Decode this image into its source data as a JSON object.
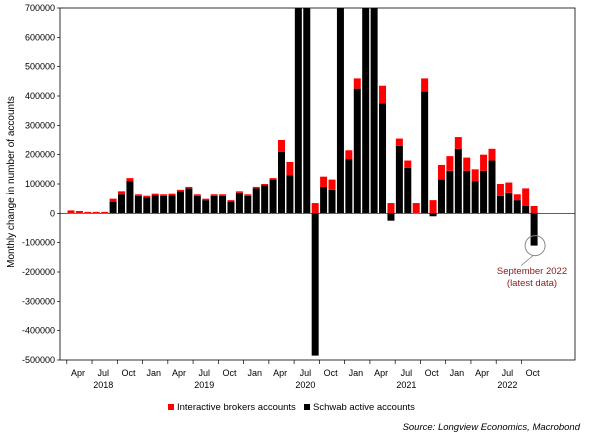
{
  "chart_data": {
    "type": "bar",
    "stacked": true,
    "ylabel": "Monthly change in number of accounts",
    "ylim": [
      -500000,
      700000
    ],
    "yticks": [
      -500000,
      -400000,
      -300000,
      -200000,
      -100000,
      0,
      100000,
      200000,
      300000,
      400000,
      500000,
      600000,
      700000
    ],
    "ytick_labels": [
      "-500000",
      "-400000",
      "-300000",
      "-200000",
      "-100000",
      "0",
      "100000",
      "200000",
      "300000",
      "400000",
      "500000",
      "600000",
      "700000"
    ],
    "x_month_ticks": [
      {
        "index": 0,
        "label": "Apr"
      },
      {
        "index": 3,
        "label": "Jul"
      },
      {
        "index": 6,
        "label": "Oct"
      },
      {
        "index": 9,
        "label": "Jan"
      },
      {
        "index": 12,
        "label": "Apr"
      },
      {
        "index": 15,
        "label": "Jul"
      },
      {
        "index": 18,
        "label": "Oct"
      },
      {
        "index": 21,
        "label": "Jan"
      },
      {
        "index": 24,
        "label": "Apr"
      },
      {
        "index": 27,
        "label": "Jul"
      },
      {
        "index": 30,
        "label": "Oct"
      },
      {
        "index": 33,
        "label": "Jan"
      },
      {
        "index": 36,
        "label": "Apr"
      },
      {
        "index": 39,
        "label": "Jul"
      },
      {
        "index": 42,
        "label": "Oct"
      },
      {
        "index": 45,
        "label": "Jan"
      },
      {
        "index": 48,
        "label": "Apr"
      },
      {
        "index": 51,
        "label": "Jul"
      },
      {
        "index": 54,
        "label": "Oct"
      }
    ],
    "x_year_ticks": [
      {
        "index": 3,
        "label": "2018"
      },
      {
        "index": 15,
        "label": "2019"
      },
      {
        "index": 27,
        "label": "2020"
      },
      {
        "index": 39,
        "label": "2021"
      },
      {
        "index": 51,
        "label": "2022"
      }
    ],
    "series": [
      {
        "name": "Schwab active accounts",
        "color": "#000000",
        "values": [
          0,
          0,
          0,
          0,
          0,
          40000,
          65000,
          110000,
          60000,
          55000,
          62000,
          60000,
          62000,
          75000,
          85000,
          60000,
          45000,
          60000,
          60000,
          40000,
          70000,
          60000,
          85000,
          95000,
          115000,
          210000,
          130000,
          720000,
          700000,
          -485000,
          90000,
          80000,
          720000,
          185000,
          425000,
          720000,
          720000,
          375000,
          -25000,
          230000,
          155000,
          0,
          415000,
          -10000,
          115000,
          145000,
          220000,
          145000,
          110000,
          145000,
          180000,
          60000,
          70000,
          45000,
          25000,
          -110000
        ]
      },
      {
        "name": "Interactive brokers accounts",
        "color": "#ff0000",
        "values": [
          10000,
          8000,
          5000,
          5000,
          5000,
          10000,
          10000,
          10000,
          5000,
          5000,
          5000,
          5000,
          5000,
          5000,
          5000,
          5000,
          5000,
          5000,
          5000,
          5000,
          5000,
          5000,
          5000,
          5000,
          5000,
          40000,
          45000,
          10000,
          20000,
          35000,
          35000,
          35000,
          10000,
          30000,
          35000,
          10000,
          10000,
          60000,
          35000,
          25000,
          25000,
          35000,
          45000,
          45000,
          50000,
          50000,
          40000,
          45000,
          40000,
          55000,
          40000,
          40000,
          35000,
          20000,
          60000,
          25000
        ]
      }
    ],
    "legend": [
      "Interactive brokers accounts",
      "Schwab active accounts"
    ],
    "legend_position": "bottom",
    "annotation": {
      "lines": [
        "September 2022",
        "(latest data)"
      ],
      "color": "#8b1a1a",
      "target_index": 55
    },
    "source": "Source: Longview Economics, Macrobond"
  }
}
